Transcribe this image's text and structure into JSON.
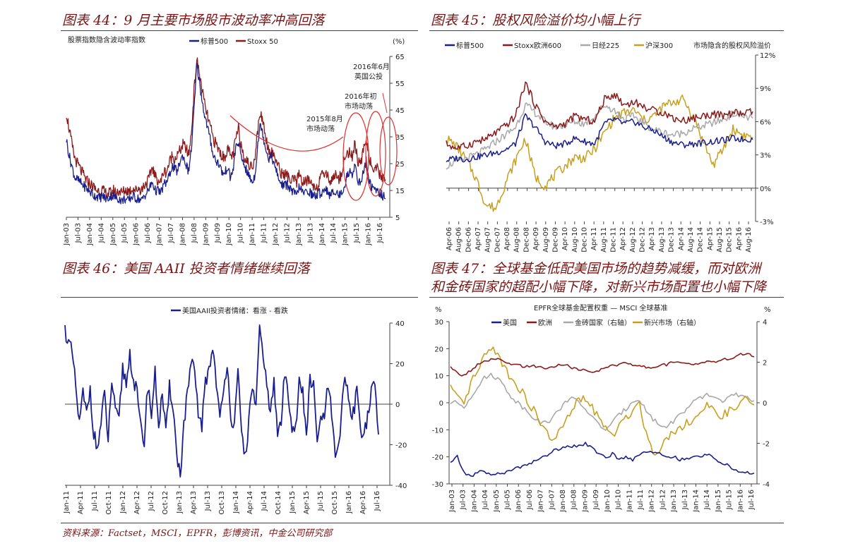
{
  "colors": {
    "title": "#7a1414",
    "navy": "#1a1f8c",
    "maroon": "#8b1a1a",
    "gray": "#a8a8a8",
    "gold": "#c8a020",
    "red": "#e03030"
  },
  "footer": {
    "source": "资料来源：Factset，MSCI，EPFR，彭博资讯，中金公司研究部"
  },
  "fig44": {
    "title": "图表 44：9 月主要市场股市波动率冲高回落",
    "chart_data": {
      "type": "line",
      "subtitle": "股票指数隐含波动率指数",
      "unit": "(%)",
      "ylim": [
        5,
        65
      ],
      "yticks": [
        "65",
        "55",
        "45",
        "35",
        "25",
        "15",
        "5"
      ],
      "xticks": [
        "Jan-03",
        "Jul-03",
        "Jan-04",
        "Jul-04",
        "Jan-05",
        "Jul-05",
        "Jan-06",
        "Jul-06",
        "Jan-07",
        "Jul-07",
        "Jan-08",
        "Jul-08",
        "Jan-09",
        "Jul-09",
        "Jan-10",
        "Jul-10",
        "Jan-11",
        "Jul-11",
        "Jan-12",
        "Jul-12",
        "Jan-13",
        "Jul-13",
        "Jan-14",
        "Jul-14",
        "Jan-15",
        "Jul-15",
        "Jan-16",
        "Jul-16"
      ],
      "series": [
        {
          "name": "标普500",
          "values": [
            34,
            28,
            24,
            20,
            19,
            18,
            17,
            16,
            15,
            14,
            13,
            13,
            12,
            13,
            12,
            12,
            13,
            13,
            12,
            12,
            11,
            12,
            11,
            12,
            13,
            12,
            12,
            11,
            13,
            14,
            16,
            18,
            15,
            15,
            14,
            17,
            18,
            20,
            24,
            23,
            22,
            26,
            28,
            25,
            22,
            30,
            45,
            62,
            55,
            48,
            42,
            38,
            33,
            28,
            26,
            25,
            22,
            21,
            24,
            20,
            22,
            31,
            33,
            27,
            25,
            22,
            20,
            18,
            21,
            33,
            40,
            35,
            30,
            27,
            28,
            24,
            21,
            18,
            17,
            17,
            17,
            15,
            14,
            13,
            17,
            14,
            14,
            15,
            14,
            13,
            13,
            14,
            14,
            16,
            15,
            13,
            14,
            15,
            13,
            14,
            16,
            20,
            22,
            21,
            25,
            19,
            17,
            22,
            26,
            19,
            16,
            15,
            15,
            14,
            13,
            12
          ]
        },
        {
          "name": "Stoxx 50",
          "values": [
            44,
            38,
            32,
            27,
            25,
            23,
            21,
            19,
            18,
            17,
            16,
            15,
            15,
            15,
            14,
            14,
            14,
            15,
            14,
            15,
            14,
            15,
            15,
            15,
            16,
            15,
            16,
            15,
            17,
            18,
            20,
            24,
            20,
            19,
            18,
            22,
            22,
            25,
            28,
            27,
            28,
            30,
            32,
            31,
            28,
            36,
            52,
            64,
            58,
            52,
            46,
            42,
            38,
            34,
            32,
            30,
            28,
            27,
            31,
            28,
            28,
            34,
            38,
            32,
            28,
            26,
            24,
            24,
            28,
            38,
            44,
            40,
            34,
            30,
            29,
            28,
            25,
            22,
            21,
            21,
            20,
            18,
            19,
            18,
            22,
            18,
            18,
            19,
            18,
            17,
            16,
            18,
            20,
            22,
            21,
            18,
            20,
            21,
            19,
            21,
            26,
            28,
            30,
            27,
            33,
            26,
            24,
            30,
            35,
            28,
            24,
            22,
            23,
            21,
            19,
            19
          ]
        }
      ],
      "annotations": [
        "2015年8月",
        "市场动荡",
        "2016年初",
        "市场动荡",
        "2016年6月",
        "英国公投"
      ]
    }
  },
  "fig45": {
    "title": "图表 45：股权风险溢价均小幅上行",
    "chart_data": {
      "type": "line",
      "subtitle": "市场隐含的股权风险溢价",
      "ylim": [
        -3,
        12
      ],
      "yticks": [
        "12%",
        "9%",
        "6%",
        "3%",
        "0%",
        "-3%"
      ],
      "xticks": [
        "Apr-06",
        "Aug-06",
        "Dec-06",
        "Apr-07",
        "Aug-07",
        "Dec-07",
        "Apr-08",
        "Aug-08",
        "Dec-08",
        "Apr-09",
        "Aug-09",
        "Dec-09",
        "Apr-10",
        "Aug-10",
        "Dec-10",
        "Apr-11",
        "Aug-11",
        "Dec-11",
        "Apr-12",
        "Aug-12",
        "Dec-12",
        "Apr-13",
        "Aug-13",
        "Dec-13",
        "Apr-14",
        "Aug-14",
        "Dec-14",
        "Apr-15",
        "Aug-15",
        "Dec-15",
        "Apr-16",
        "Aug-16"
      ],
      "series": [
        {
          "name": "标普500",
          "values": [
            2.5,
            2.7,
            2.6,
            2.8,
            3.0,
            3.2,
            3.5,
            4.0,
            6.5,
            5.5,
            4.2,
            3.8,
            4.0,
            4.5,
            4.2,
            4.0,
            5.8,
            6.2,
            5.8,
            6.0,
            5.5,
            5.2,
            4.6,
            4.1,
            3.9,
            4.0,
            4.1,
            4.2,
            4.3,
            4.5,
            4.4,
            4.4
          ]
        },
        {
          "name": "Stoxx欧洲600",
          "values": [
            4.0,
            3.6,
            3.8,
            4.2,
            4.4,
            5.0,
            5.6,
            6.5,
            9.5,
            7.5,
            6.0,
            5.5,
            5.8,
            6.5,
            6.2,
            6.0,
            8.0,
            8.5,
            7.5,
            7.8,
            7.3,
            7.0,
            6.8,
            6.3,
            6.1,
            6.3,
            6.5,
            6.7,
            6.5,
            6.8,
            6.7,
            6.9
          ]
        },
        {
          "name": "日经225",
          "values": [
            2.0,
            2.4,
            2.7,
            3.0,
            3.5,
            4.2,
            4.8,
            5.5,
            7.5,
            6.8,
            6.0,
            5.5,
            5.7,
            6.0,
            5.8,
            6.5,
            7.5,
            7.0,
            6.2,
            6.5,
            5.8,
            5.3,
            5.0,
            4.8,
            5.0,
            5.4,
            5.6,
            5.9,
            6.2,
            6.7,
            6.5,
            6.3
          ]
        },
        {
          "name": "沪深300",
          "values": [
            4.5,
            3.8,
            2.6,
            0.9,
            -1.5,
            -1.8,
            0.5,
            2.5,
            4.5,
            1.0,
            0.2,
            1.2,
            2.0,
            2.8,
            2.7,
            3.5,
            5.0,
            6.3,
            6.8,
            7.0,
            6.1,
            6.5,
            7.4,
            7.8,
            8.0,
            6.4,
            4.2,
            2.1,
            3.5,
            5.3,
            4.8,
            4.6
          ]
        }
      ]
    }
  },
  "fig46": {
    "title": "图表 46：美国 AAII 投资者情绪继续回落",
    "chart_data": {
      "type": "line",
      "ylim": [
        -40,
        40
      ],
      "yticks": [
        "40",
        "20",
        "0",
        "-20",
        "-40"
      ],
      "xticks": [
        "Jan-11",
        "Apr-11",
        "Jul-11",
        "Oct-11",
        "Jan-12",
        "Apr-12",
        "Jul-12",
        "Oct-12",
        "Jan-13",
        "Apr-13",
        "Jul-13",
        "Oct-13",
        "Jan-14",
        "Apr-14",
        "Jul-14",
        "Oct-14",
        "Jan-15",
        "Apr-15",
        "Jul-15",
        "Oct-15",
        "Jan-16",
        "Apr-16",
        "Jul-16"
      ],
      "series": [
        {
          "name": "美国AAII投资者情绪：看涨 - 看跌",
          "values": [
            37,
            30,
            25,
            8,
            -10,
            5,
            -5,
            8,
            -15,
            -22,
            -10,
            5,
            -18,
            12,
            -5,
            -8,
            18,
            10,
            25,
            12,
            5,
            -12,
            -18,
            10,
            -5,
            15,
            -10,
            5,
            -15,
            8,
            0,
            -25,
            -35,
            -10,
            5,
            20,
            15,
            -5,
            -10,
            10,
            18,
            28,
            12,
            -8,
            5,
            22,
            -5,
            -12,
            15,
            -15,
            -25,
            -10,
            10,
            -2,
            38,
            20,
            12,
            -5,
            10,
            -15,
            -8,
            15,
            5,
            -10,
            -12,
            10,
            5,
            -15,
            12,
            8,
            -20,
            -5,
            -8,
            10,
            -5,
            -28,
            -22,
            5,
            12,
            -2,
            -5,
            8,
            -12,
            -15,
            -5,
            5,
            10,
            -15
          ]
        }
      ]
    }
  },
  "fig47": {
    "title": [
      "图表 47：全球基金低配美国市场的趋势减缓，而对欧洲",
      "和金砖国家的超配小幅下降，对新兴市场配置也小幅下降"
    ],
    "chart_data": {
      "type": "line",
      "subtitle": "EPFR全球基金配置权重 — MSCI 全球基准",
      "left_unit": "%",
      "right_unit": "%",
      "ylim": [
        -30,
        30
      ],
      "ylim_right": [
        -4,
        4
      ],
      "yticks_left": [
        "30",
        "20",
        "10",
        "0",
        "-10",
        "-20",
        "-30"
      ],
      "yticks_right": [
        "4",
        "2",
        "0",
        "-2",
        "-4"
      ],
      "xticks": [
        "Jan-03",
        "Jul-03",
        "Jan-04",
        "Jul-04",
        "Jan-05",
        "Jul-05",
        "Jan-06",
        "Jul-06",
        "Jan-07",
        "Jul-07",
        "Jan-08",
        "Jul-08",
        "Jan-09",
        "Jul-09",
        "Jan-10",
        "Jul-10",
        "Jan-11",
        "Jul-11",
        "Jan-12",
        "Jul-12",
        "Jan-13",
        "Jul-13",
        "Jan-14",
        "Jul-14",
        "Jan-15",
        "Jul-15",
        "Jan-16",
        "Jul-16"
      ],
      "series": [
        {
          "name": "美国",
          "axis": "left",
          "values": [
            -22,
            -20,
            -26,
            -27,
            -26,
            -25,
            -27,
            -26,
            -26,
            -25,
            -24,
            -23,
            -22,
            -21,
            -20,
            -18,
            -17,
            -16,
            -16,
            -16,
            -15,
            -17,
            -19,
            -20,
            -19,
            -21,
            -20,
            -21,
            -19,
            -18,
            -18,
            -19,
            -20,
            -20,
            -21,
            -21,
            -20,
            -20,
            -19,
            -20,
            -22,
            -23,
            -25,
            -26,
            -26,
            -26
          ]
        },
        {
          "name": "欧洲",
          "axis": "left",
          "values": [
            13,
            11,
            10,
            12,
            14,
            15,
            16,
            16,
            15,
            14,
            14,
            13,
            14,
            13,
            13,
            13,
            14,
            14,
            13,
            12,
            12,
            11,
            12,
            13,
            14,
            14,
            15,
            14,
            14,
            13,
            13,
            14,
            14,
            15,
            15,
            15,
            14,
            15,
            15,
            15,
            16,
            16,
            17,
            18,
            18,
            17
          ]
        },
        {
          "name": "金砖国家（右轴）",
          "axis": "right",
          "values": [
            0,
            0,
            -0.2,
            0.3,
            0.8,
            1.2,
            1.4,
            1.2,
            0.8,
            0.3,
            0,
            -0.3,
            -0.6,
            -0.9,
            -1.0,
            -0.8,
            -0.4,
            0.1,
            0.2,
            0,
            -0.3,
            -0.7,
            -1.1,
            -1.3,
            -1.0,
            -0.6,
            -0.3,
            0.1,
            0.2,
            -0.4,
            -0.8,
            -1.1,
            -1.2,
            -0.9,
            -0.6,
            -0.3,
            0,
            0.2,
            0.4,
            0.3,
            0.1,
            0.2,
            0.4,
            0.3,
            0.2,
            0.1
          ]
        },
        {
          "name": "新兴市场（右轴）",
          "axis": "right",
          "values": [
            0.8,
            0.2,
            -0.2,
            1.0,
            1.5,
            2.2,
            2.8,
            2.3,
            1.8,
            1.2,
            0.8,
            0.3,
            -0.2,
            -0.8,
            -1.4,
            -1.8,
            -1.5,
            -1.0,
            -0.4,
            0.2,
            0.1,
            -0.2,
            -0.8,
            -1.3,
            -1.6,
            -1.2,
            -0.8,
            -0.3,
            0,
            -1.5,
            -2.5,
            -2.2,
            -1.8,
            -1.4,
            -1.2,
            -1.0,
            -0.8,
            -0.5,
            -0.2,
            -0.4,
            -0.6,
            -0.5,
            -0.3,
            0,
            0.2,
            -0.1
          ]
        }
      ]
    }
  }
}
